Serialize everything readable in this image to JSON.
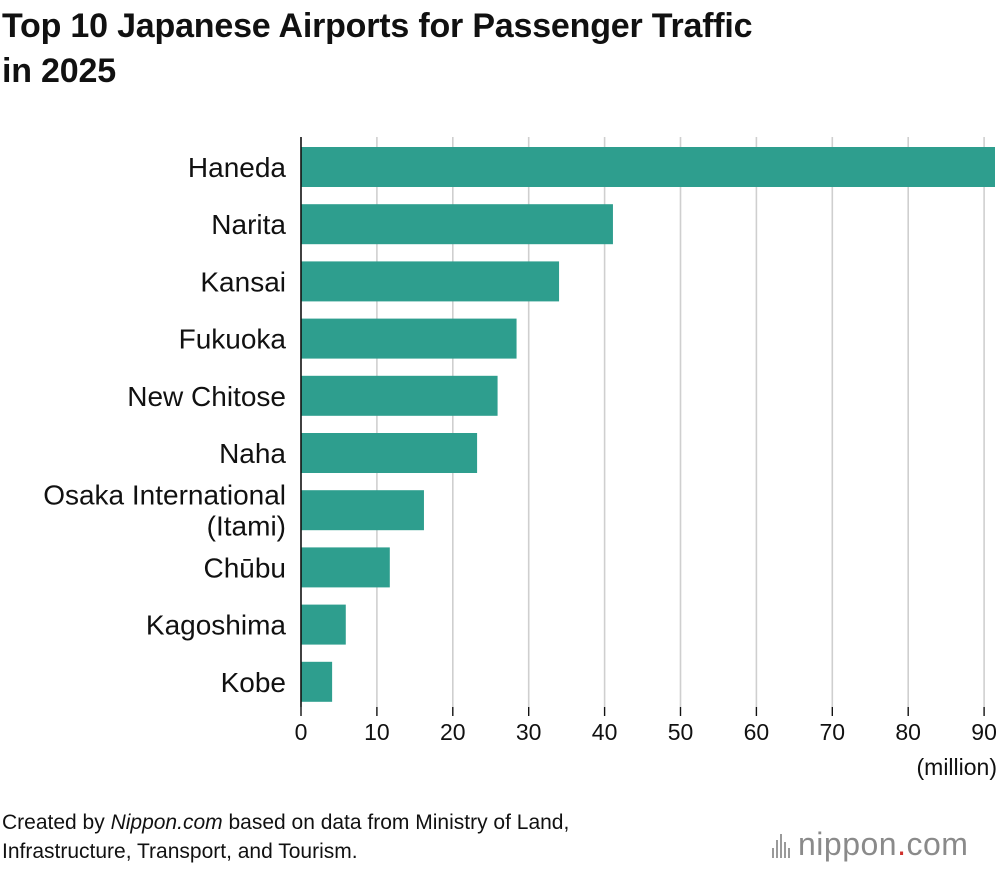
{
  "chart_data": {
    "type": "bar",
    "orientation": "horizontal",
    "title": "Top 10 Japanese Airports for Passenger Traffic in 2025",
    "categories": [
      "Haneda",
      "Narita",
      "Kansai",
      "Fukuoka",
      "New Chitose",
      "Naha",
      "Osaka International (Itami)",
      "Chūbu",
      "Kagoshima",
      "Kobe"
    ],
    "category_lines": [
      [
        "Haneda"
      ],
      [
        "Narita"
      ],
      [
        "Kansai"
      ],
      [
        "Fukuoka"
      ],
      [
        "New Chitose"
      ],
      [
        "Naha"
      ],
      [
        "Osaka International",
        "(Itami)"
      ],
      [
        "Chūbu"
      ],
      [
        "Kagoshima"
      ],
      [
        "Kobe"
      ]
    ],
    "values": [
      91.7,
      41.1,
      34.0,
      28.4,
      25.9,
      23.2,
      16.2,
      11.7,
      5.9,
      4.1
    ],
    "xlim": [
      0,
      92
    ],
    "xticks": [
      0,
      10,
      20,
      30,
      40,
      50,
      60,
      70,
      80,
      90
    ],
    "xunit": "(million)",
    "grid": true,
    "bar_color": "#2e9e8e"
  },
  "header": {
    "title_line1": "Top 10 Japanese Airports for Passenger Traffic",
    "title_line2": "in 2025"
  },
  "footer": {
    "source_prefix": "Created by ",
    "source_site": "Nippon.com",
    "source_line1_rest": " based on data from Ministry of Land,",
    "source_line2": "Infrastructure, Transport, and Tourism.",
    "logo_main": "nippon",
    "logo_dot": ".",
    "logo_tld": "com"
  }
}
